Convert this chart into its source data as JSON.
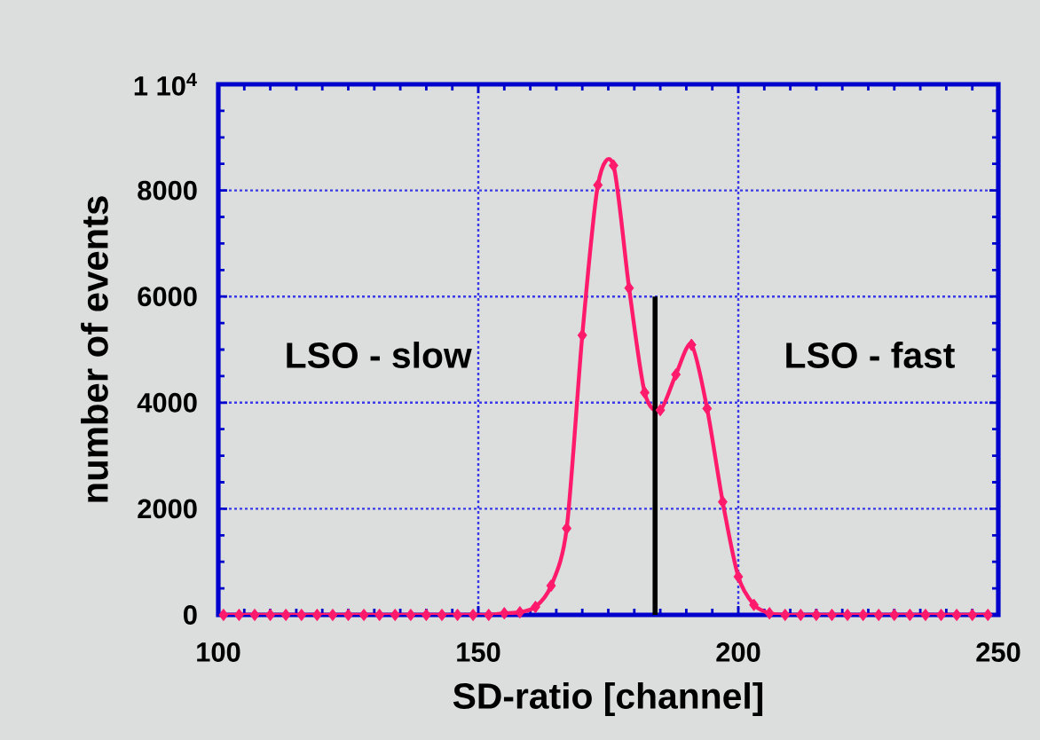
{
  "chart_data": {
    "type": "line",
    "xlabel": "SD-ratio [channel]",
    "ylabel": "number of events",
    "xlim": [
      100,
      250
    ],
    "xticks": [
      100,
      150,
      200,
      250
    ],
    "ylim": [
      0,
      10000
    ],
    "yticks": [
      0,
      2000,
      4000,
      6000,
      8000,
      {
        "value": 10000,
        "label": "1 10$^{4}$"
      }
    ],
    "grid": true,
    "marker": "diamond",
    "x": [
      101,
      104,
      107,
      110,
      113,
      116,
      119,
      122,
      125,
      128,
      131,
      134,
      137,
      140,
      143,
      146,
      149,
      152,
      155,
      158,
      161,
      164,
      167,
      170,
      173,
      176,
      179,
      182,
      185,
      188,
      191,
      194,
      197,
      200,
      203,
      206,
      209,
      212,
      215,
      218,
      221,
      224,
      227,
      230,
      233,
      236,
      239,
      242,
      245,
      248
    ],
    "series": [
      {
        "color": "#ff1a6c",
        "values": [
          0,
          0,
          0,
          0,
          0,
          0,
          0,
          0,
          0,
          0,
          0,
          0,
          0,
          0,
          0,
          0,
          0,
          0,
          30,
          50,
          150,
          550,
          1630,
          5270,
          8100,
          8470,
          6160,
          4190,
          3860,
          4530,
          5090,
          3890,
          2130,
          720,
          190,
          30,
          0,
          0,
          0,
          0,
          0,
          0,
          0,
          0,
          0,
          0,
          0,
          0,
          0,
          0
        ]
      },
      {
        "type": "line",
        "color": "#000000",
        "marker": "none",
        "x": [
          184,
          184
        ],
        "values": [
          0,
          6000
        ]
      }
    ],
    "annotations": [
      "LSO - slow",
      "LSO - fast"
    ]
  }
}
